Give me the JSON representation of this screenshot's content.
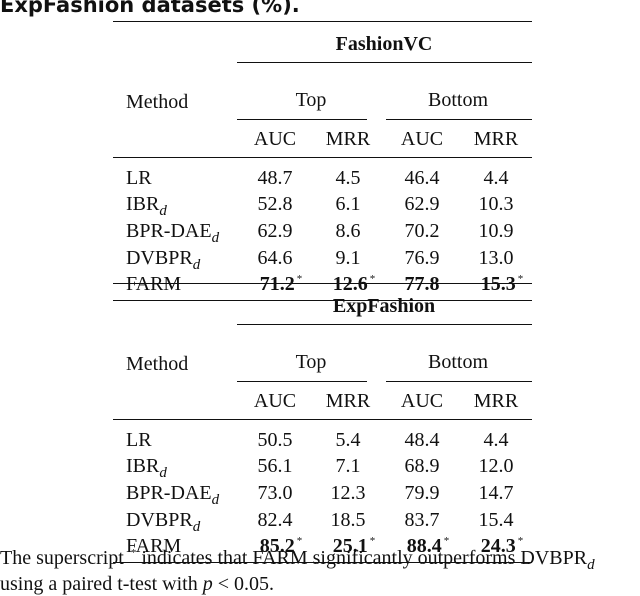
{
  "caption": "ExpFashion datasets (%).",
  "header": {
    "method_label": "Method",
    "group_top": "Top",
    "group_bottom": "Bottom",
    "metric_auc": "AUC",
    "metric_mrr": "MRR"
  },
  "sections": [
    {
      "dataset": "FashionVC",
      "rows": [
        {
          "method": "LR",
          "sub": "",
          "top_auc": "48.7",
          "top_mrr": "4.5",
          "bot_auc": "46.4",
          "bot_mrr": "4.4",
          "bold": false,
          "star": [
            false,
            false,
            false,
            false
          ]
        },
        {
          "method": "IBR",
          "sub": "d",
          "top_auc": "52.8",
          "top_mrr": "6.1",
          "bot_auc": "62.9",
          "bot_mrr": "10.3",
          "bold": false,
          "star": [
            false,
            false,
            false,
            false
          ]
        },
        {
          "method": "BPR-DAE",
          "sub": "d",
          "top_auc": "62.9",
          "top_mrr": "8.6",
          "bot_auc": "70.2",
          "bot_mrr": "10.9",
          "bold": false,
          "star": [
            false,
            false,
            false,
            false
          ]
        },
        {
          "method": "DVBPR",
          "sub": "d",
          "top_auc": "64.6",
          "top_mrr": "9.1",
          "bot_auc": "76.9",
          "bot_mrr": "13.0",
          "bold": false,
          "star": [
            false,
            false,
            false,
            false
          ]
        },
        {
          "method": "FARM",
          "sub": "",
          "top_auc": "71.2",
          "top_mrr": "12.6",
          "bot_auc": "77.8",
          "bot_mrr": "15.3",
          "bold": true,
          "star": [
            true,
            true,
            false,
            true
          ]
        }
      ]
    },
    {
      "dataset": "ExpFashion",
      "rows": [
        {
          "method": "LR",
          "sub": "",
          "top_auc": "50.5",
          "top_mrr": "5.4",
          "bot_auc": "48.4",
          "bot_mrr": "4.4",
          "bold": false,
          "star": [
            false,
            false,
            false,
            false
          ]
        },
        {
          "method": "IBR",
          "sub": "d",
          "top_auc": "56.1",
          "top_mrr": "7.1",
          "bot_auc": "68.9",
          "bot_mrr": "12.0",
          "bold": false,
          "star": [
            false,
            false,
            false,
            false
          ]
        },
        {
          "method": "BPR-DAE",
          "sub": "d",
          "top_auc": "73.0",
          "top_mrr": "12.3",
          "bot_auc": "79.9",
          "bot_mrr": "14.7",
          "bold": false,
          "star": [
            false,
            false,
            false,
            false
          ]
        },
        {
          "method": "DVBPR",
          "sub": "d",
          "top_auc": "82.4",
          "top_mrr": "18.5",
          "bot_auc": "83.7",
          "bot_mrr": "15.4",
          "bold": false,
          "star": [
            false,
            false,
            false,
            false
          ]
        },
        {
          "method": "FARM",
          "sub": "",
          "top_auc": "85.2",
          "top_mrr": "25.1",
          "bot_auc": "88.4",
          "bot_mrr": "24.3",
          "bold": true,
          "star": [
            true,
            true,
            true,
            true
          ]
        }
      ]
    }
  ],
  "star_symbol": "*",
  "footnote": {
    "line1_a": "The superscript",
    "line1_b": "indicates that FARM significantly outperforms DVBPR",
    "line1_sub": "d",
    "line2_a": "using a paired t-test with",
    "p_var": "p",
    "line2_b": "< 0.05."
  }
}
